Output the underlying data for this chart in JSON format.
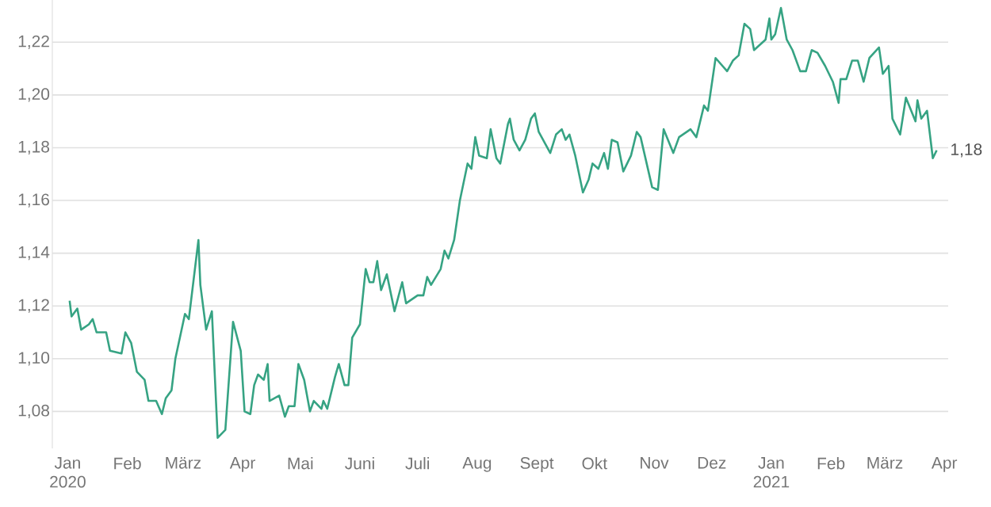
{
  "chart_data": {
    "type": "line",
    "color": "#36a383",
    "grid": "y",
    "xlim": [
      "2019-12-24",
      "2021-04-03"
    ],
    "ylim": [
      1.066,
      1.236
    ],
    "xticks": [
      {
        "value": "2020-01-01",
        "label": "Jan 2020"
      },
      {
        "value": "2020-02-01",
        "label": "Feb"
      },
      {
        "value": "2020-03-01",
        "label": "März"
      },
      {
        "value": "2020-04-01",
        "label": "Apr"
      },
      {
        "value": "2020-05-01",
        "label": "Mai"
      },
      {
        "value": "2020-06-01",
        "label": "Juni"
      },
      {
        "value": "2020-07-01",
        "label": "Juli"
      },
      {
        "value": "2020-08-01",
        "label": "Aug"
      },
      {
        "value": "2020-09-01",
        "label": "Sept"
      },
      {
        "value": "2020-10-01",
        "label": "Okt"
      },
      {
        "value": "2020-11-01",
        "label": "Nov"
      },
      {
        "value": "2020-12-01",
        "label": "Dez"
      },
      {
        "value": "2021-01-01",
        "label": "Jan 2021"
      },
      {
        "value": "2021-02-01",
        "label": "Feb"
      },
      {
        "value": "2021-03-01",
        "label": "März"
      },
      {
        "value": "2021-04-01",
        "label": "Apr"
      }
    ],
    "yticks": [
      {
        "value": 1.08,
        "label": "1,08"
      },
      {
        "value": 1.1,
        "label": "1,10"
      },
      {
        "value": 1.12,
        "label": "1,12"
      },
      {
        "value": 1.14,
        "label": "1,14"
      },
      {
        "value": 1.16,
        "label": "1,16"
      },
      {
        "value": 1.18,
        "label": "1,18"
      },
      {
        "value": 1.2,
        "label": "1,20"
      },
      {
        "value": 1.22,
        "label": "1,22"
      }
    ],
    "annotations": [
      {
        "text": "1,18",
        "x": "2021-03-28",
        "y": 1.179
      }
    ],
    "x": [
      "2020-01-02",
      "2020-01-03",
      "2020-01-06",
      "2020-01-08",
      "2020-01-12",
      "2020-01-14",
      "2020-01-16",
      "2020-01-21",
      "2020-01-23",
      "2020-01-29",
      "2020-01-31",
      "2020-02-03",
      "2020-02-06",
      "2020-02-10",
      "2020-02-12",
      "2020-02-16",
      "2020-02-19",
      "2020-02-21",
      "2020-02-24",
      "2020-02-26",
      "2020-03-02",
      "2020-03-04",
      "2020-03-09",
      "2020-03-10",
      "2020-03-13",
      "2020-03-16",
      "2020-03-19",
      "2020-03-23",
      "2020-03-27",
      "2020-03-31",
      "2020-04-02",
      "2020-04-05",
      "2020-04-07",
      "2020-04-09",
      "2020-04-12",
      "2020-04-14",
      "2020-04-15",
      "2020-04-20",
      "2020-04-23",
      "2020-04-25",
      "2020-04-28",
      "2020-04-30",
      "2020-05-03",
      "2020-05-06",
      "2020-05-08",
      "2020-05-12",
      "2020-05-13",
      "2020-05-15",
      "2020-05-19",
      "2020-05-21",
      "2020-05-24",
      "2020-05-26",
      "2020-05-28",
      "2020-06-01",
      "2020-06-04",
      "2020-06-06",
      "2020-06-08",
      "2020-06-10",
      "2020-06-12",
      "2020-06-15",
      "2020-06-19",
      "2020-06-23",
      "2020-06-25",
      "2020-07-01",
      "2020-07-04",
      "2020-07-06",
      "2020-07-08",
      "2020-07-13",
      "2020-07-15",
      "2020-07-17",
      "2020-07-20",
      "2020-07-23",
      "2020-07-27",
      "2020-07-29",
      "2020-07-31",
      "2020-08-02",
      "2020-08-06",
      "2020-08-08",
      "2020-08-11",
      "2020-08-13",
      "2020-08-17",
      "2020-08-18",
      "2020-08-20",
      "2020-08-23",
      "2020-08-26",
      "2020-08-29",
      "2020-08-31",
      "2020-09-02",
      "2020-09-08",
      "2020-09-11",
      "2020-09-14",
      "2020-09-16",
      "2020-09-18",
      "2020-09-21",
      "2020-09-25",
      "2020-09-28",
      "2020-09-30",
      "2020-10-03",
      "2020-10-06",
      "2020-10-08",
      "2020-10-10",
      "2020-10-13",
      "2020-10-16",
      "2020-10-20",
      "2020-10-23",
      "2020-10-25",
      "2020-10-31",
      "2020-11-03",
      "2020-11-06",
      "2020-11-11",
      "2020-11-14",
      "2020-11-20",
      "2020-11-23",
      "2020-11-27",
      "2020-11-29",
      "2020-12-03",
      "2020-12-09",
      "2020-12-12",
      "2020-12-15",
      "2020-12-18",
      "2020-12-21",
      "2020-12-23",
      "2020-12-29",
      "2020-12-31",
      "2021-01-01",
      "2021-01-03",
      "2021-01-06",
      "2021-01-09",
      "2021-01-12",
      "2021-01-16",
      "2021-01-19",
      "2021-01-22",
      "2021-01-25",
      "2021-01-29",
      "2021-02-02",
      "2021-02-05",
      "2021-02-06",
      "2021-02-09",
      "2021-02-12",
      "2021-02-15",
      "2021-02-18",
      "2021-02-21",
      "2021-02-26",
      "2021-02-28",
      "2021-03-03",
      "2021-03-05",
      "2021-03-09",
      "2021-03-12",
      "2021-03-17",
      "2021-03-18",
      "2021-03-20",
      "2021-03-23",
      "2021-03-26",
      "2021-03-28"
    ],
    "values": [
      1.122,
      1.116,
      1.119,
      1.111,
      1.113,
      1.115,
      1.11,
      1.11,
      1.103,
      1.102,
      1.11,
      1.106,
      1.095,
      1.092,
      1.084,
      1.084,
      1.079,
      1.085,
      1.088,
      1.1,
      1.117,
      1.115,
      1.145,
      1.128,
      1.111,
      1.118,
      1.07,
      1.073,
      1.114,
      1.103,
      1.08,
      1.079,
      1.09,
      1.094,
      1.092,
      1.098,
      1.084,
      1.086,
      1.078,
      1.082,
      1.082,
      1.098,
      1.092,
      1.08,
      1.084,
      1.081,
      1.084,
      1.081,
      1.093,
      1.098,
      1.09,
      1.09,
      1.108,
      1.113,
      1.134,
      1.129,
      1.129,
      1.137,
      1.126,
      1.132,
      1.118,
      1.129,
      1.121,
      1.124,
      1.124,
      1.131,
      1.128,
      1.134,
      1.141,
      1.138,
      1.145,
      1.16,
      1.174,
      1.172,
      1.184,
      1.177,
      1.176,
      1.187,
      1.176,
      1.174,
      1.189,
      1.191,
      1.183,
      1.179,
      1.183,
      1.191,
      1.193,
      1.186,
      1.178,
      1.185,
      1.187,
      1.183,
      1.185,
      1.177,
      1.163,
      1.168,
      1.174,
      1.172,
      1.178,
      1.172,
      1.183,
      1.182,
      1.171,
      1.177,
      1.186,
      1.184,
      1.165,
      1.164,
      1.187,
      1.178,
      1.184,
      1.187,
      1.184,
      1.196,
      1.194,
      1.214,
      1.209,
      1.213,
      1.215,
      1.227,
      1.225,
      1.217,
      1.221,
      1.229,
      1.221,
      1.223,
      1.233,
      1.221,
      1.217,
      1.209,
      1.209,
      1.217,
      1.216,
      1.211,
      1.205,
      1.197,
      1.206,
      1.206,
      1.213,
      1.213,
      1.205,
      1.214,
      1.218,
      1.208,
      1.211,
      1.191,
      1.185,
      1.199,
      1.19,
      1.198,
      1.191,
      1.194,
      1.176,
      1.179
    ]
  }
}
